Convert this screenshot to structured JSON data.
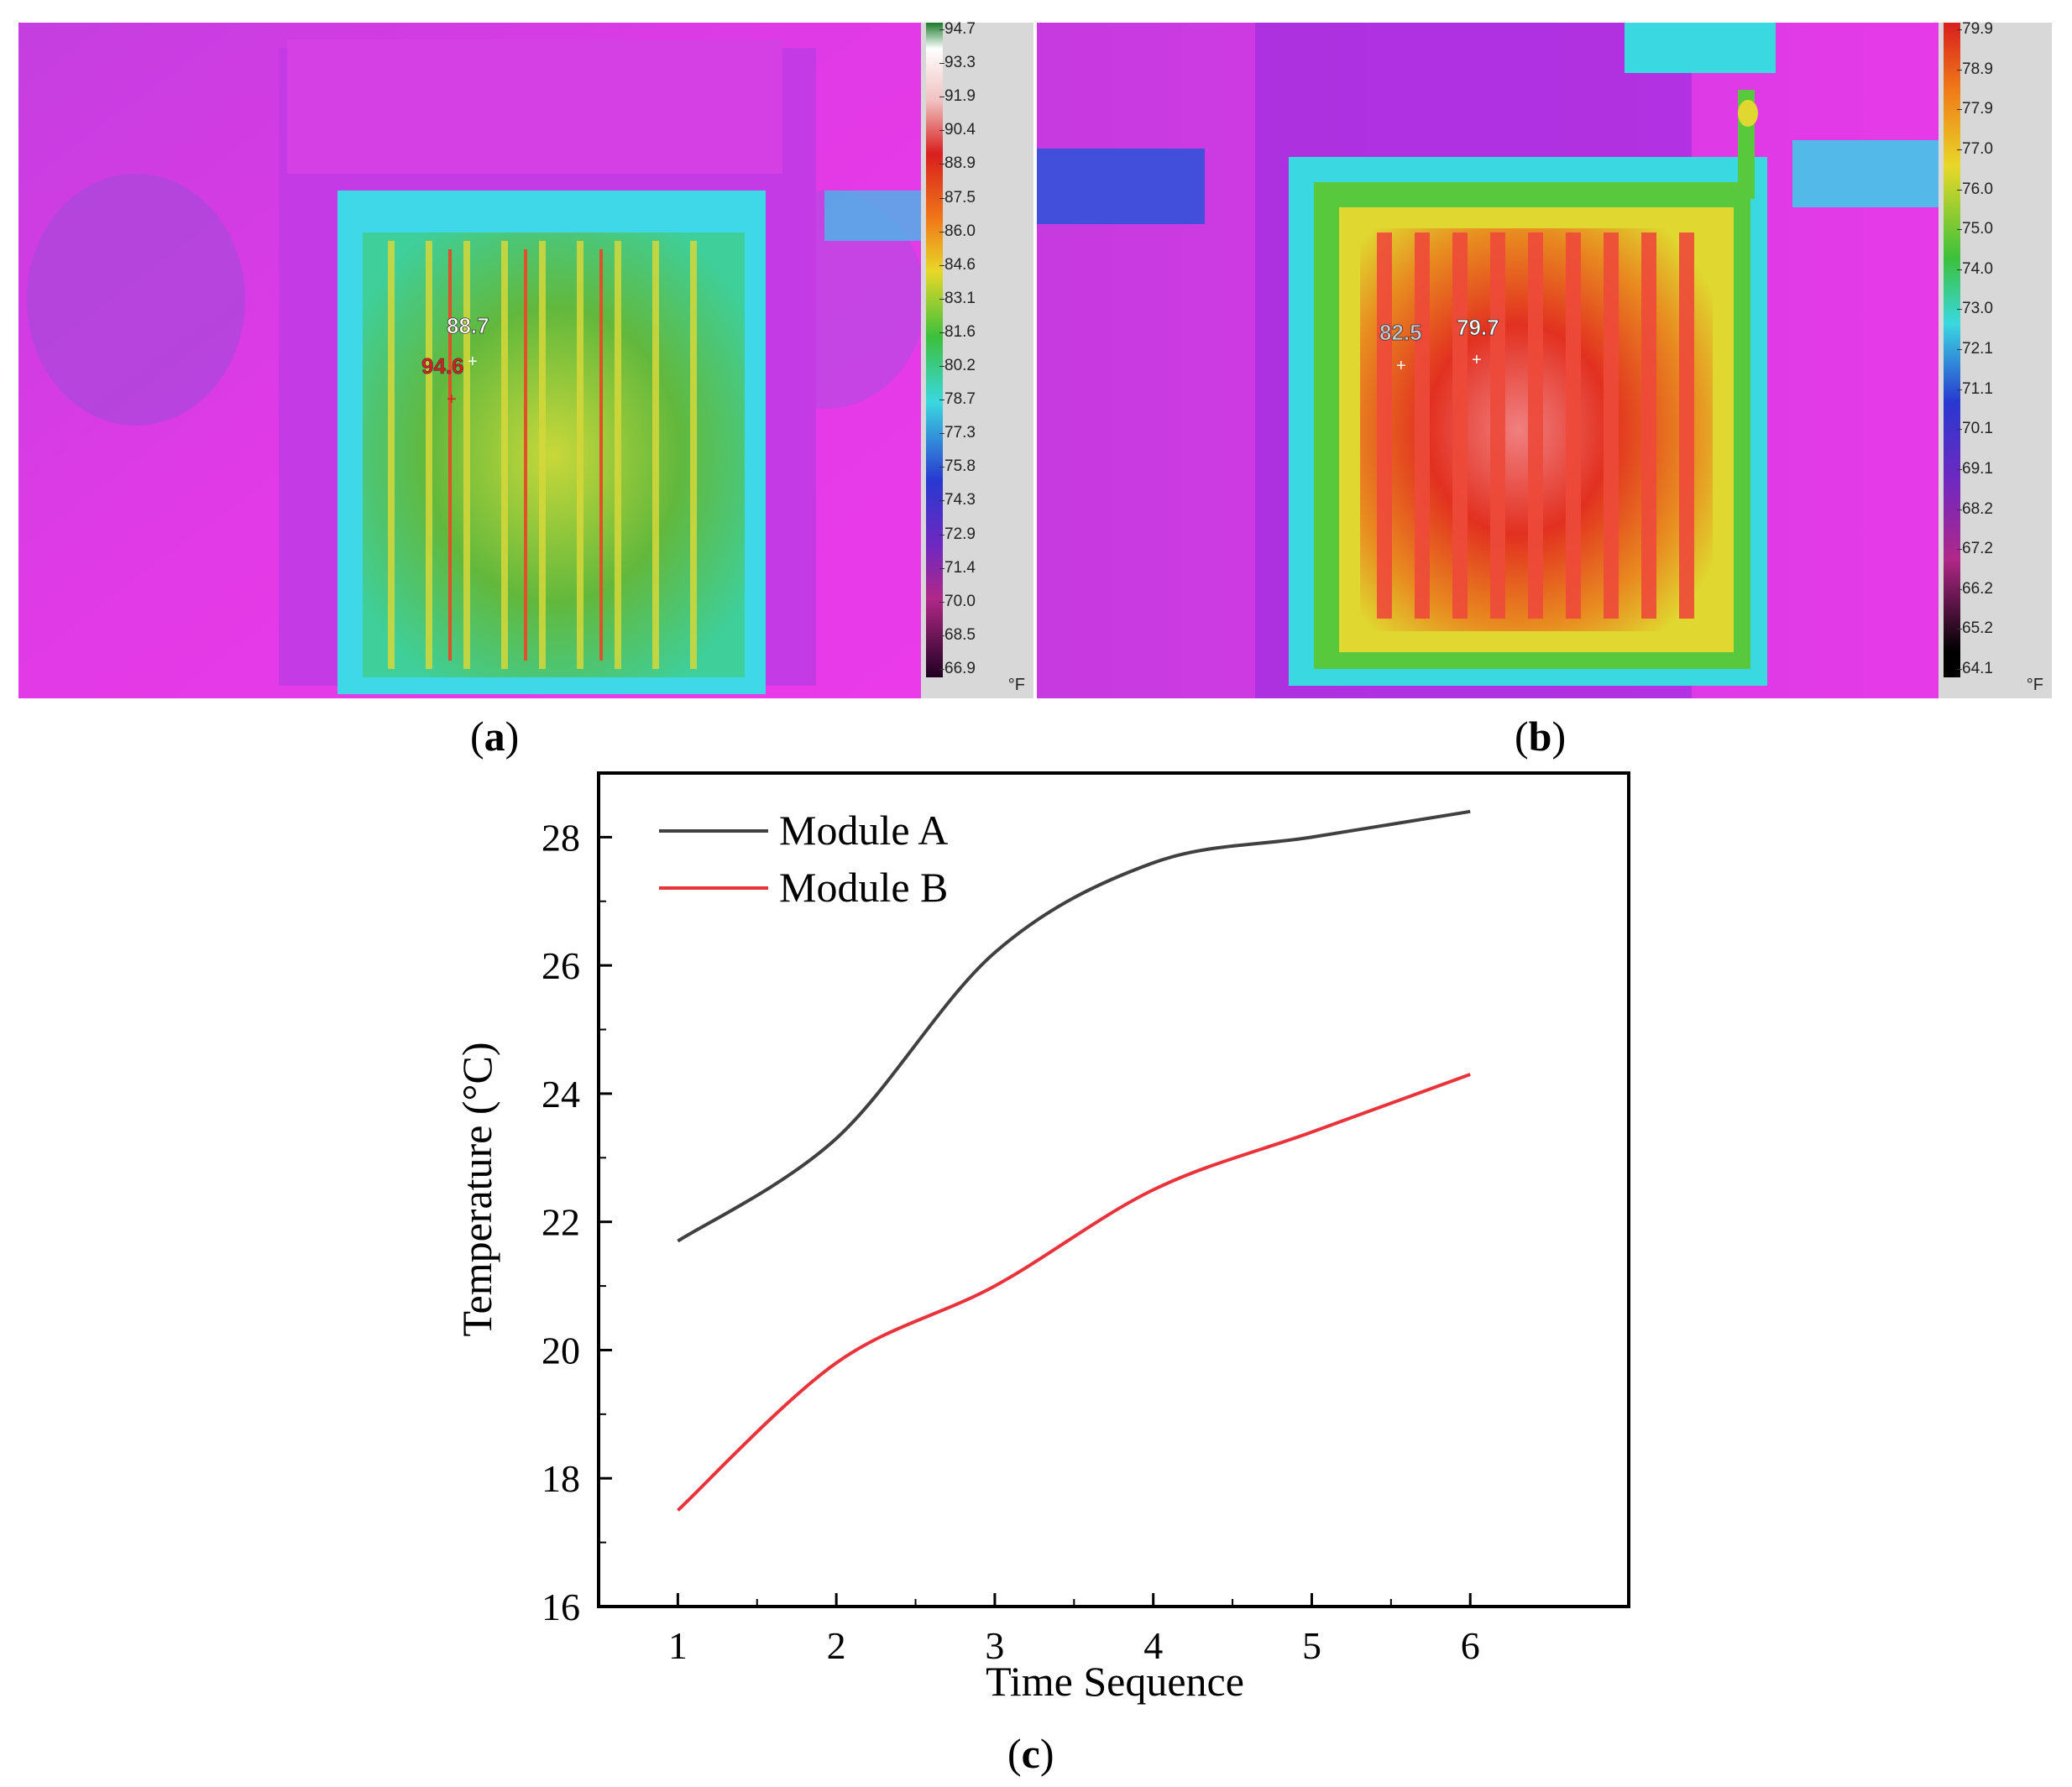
{
  "panels": {
    "a": {
      "label": "a",
      "markers": [
        "88.7",
        "94.6"
      ],
      "scale": {
        "ticks": [
          "94.7",
          "93.3",
          "91.9",
          "90.4",
          "88.9",
          "87.5",
          "86.0",
          "84.6",
          "83.1",
          "81.6",
          "80.2",
          "78.7",
          "77.3",
          "75.8",
          "74.3",
          "72.9",
          "71.4",
          "70.0",
          "68.5",
          "66.9"
        ],
        "unit": "°F"
      }
    },
    "b": {
      "label": "b",
      "markers": [
        "82.5",
        "79.7"
      ],
      "scale": {
        "ticks": [
          "79.9",
          "78.9",
          "77.9",
          "77.0",
          "76.0",
          "75.0",
          "74.0",
          "73.0",
          "72.1",
          "71.1",
          "70.1",
          "69.1",
          "68.2",
          "67.2",
          "66.2",
          "65.2",
          "64.1"
        ],
        "unit": "°F"
      }
    },
    "c": {
      "label": "c"
    }
  },
  "colors": {
    "module_a": "#404040",
    "module_b": "#e8333a",
    "bg_magenta": "#e636e6",
    "panel_cyan": "#3fd8e8",
    "hot_green": "#52b83e",
    "hot_red": "#e8321e"
  },
  "chart_data": {
    "type": "line",
    "xlabel": "Time Sequence",
    "ylabel": "Temperature (°C)",
    "xlim": [
      0.5,
      7.0
    ],
    "ylim": [
      16,
      29
    ],
    "x_ticks": [
      1,
      2,
      3,
      4,
      5,
      6
    ],
    "y_ticks": [
      16,
      18,
      20,
      22,
      24,
      26,
      28
    ],
    "legend_position": "top-left",
    "series": [
      {
        "name": "Module A",
        "color": "#404040",
        "x": [
          1,
          2,
          3,
          4,
          5,
          6
        ],
        "values": [
          21.7,
          23.3,
          26.2,
          27.6,
          28.0,
          28.4
        ]
      },
      {
        "name": "Module B",
        "color": "#e8333a",
        "x": [
          1,
          2,
          3,
          4,
          5,
          6
        ],
        "values": [
          17.5,
          19.8,
          21.0,
          22.5,
          23.4,
          24.3
        ]
      }
    ]
  }
}
